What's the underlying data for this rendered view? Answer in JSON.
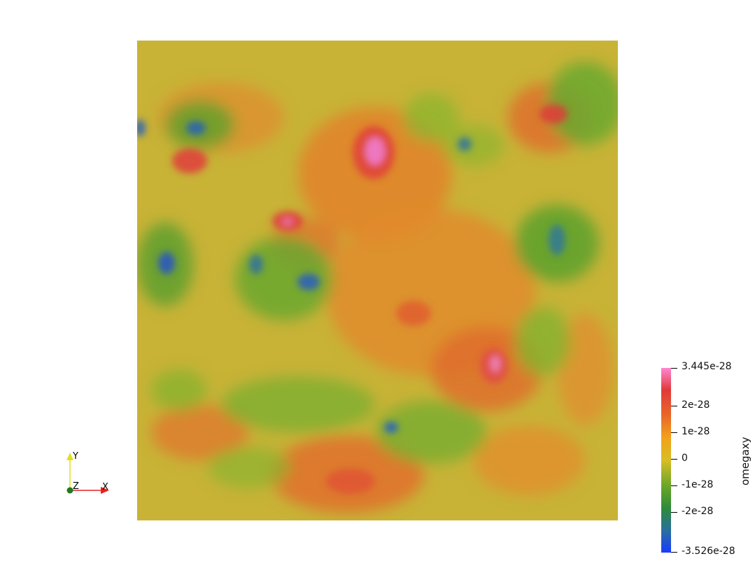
{
  "colorbar": {
    "title": "omegaxy",
    "range_max": "3.445e-28",
    "range_min": "-3.526e-28",
    "ticks": [
      "2e-28",
      "1e-28",
      "0",
      "-1e-28",
      "-2e-28"
    ],
    "colormap": [
      "#1a3cff",
      "#2a6fa0",
      "#2f8a3b",
      "#6aa628",
      "#d8bd27",
      "#f2a21c",
      "#e8642a",
      "#e03a3a",
      "#ff86d2"
    ]
  },
  "axes": {
    "x_label": "X",
    "y_label": "Y",
    "z_label": "Z",
    "x_color": "#e82020",
    "y_color": "#e0e020",
    "z_color": "#1f7a1f"
  }
}
